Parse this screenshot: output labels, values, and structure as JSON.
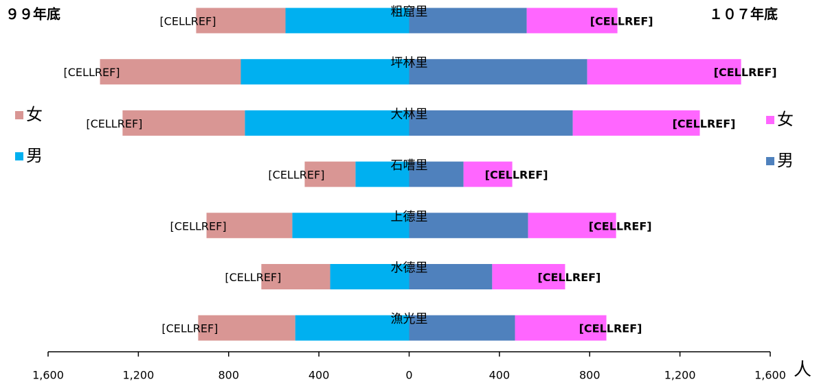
{
  "chart_data": {
    "type": "butterfly",
    "categories": [
      "粗窟里",
      "坪林里",
      "大林里",
      "石嘈里",
      "上德里",
      "水德里",
      "漁光里"
    ],
    "left": {
      "title": "９９年底",
      "series": [
        {
          "name": "男",
          "color": "#00b0f0",
          "values": [
            548,
            746,
            728,
            238,
            518,
            350,
            505
          ]
        },
        {
          "name": "女",
          "color": "#d99694",
          "values": [
            396,
            624,
            542,
            225,
            380,
            305,
            430
          ]
        }
      ],
      "labels": [
        "[CELLREF]",
        "[CELLREF]",
        "[CELLREF]",
        "[CELLREF]",
        "[CELLREF]",
        "[CELLREF]",
        "[CELLREF]"
      ]
    },
    "right": {
      "title": "１０７年底",
      "series": [
        {
          "name": "男",
          "color": "#4f81bd",
          "values": [
            521,
            789,
            725,
            241,
            527,
            368,
            469
          ]
        },
        {
          "name": "女",
          "color": "#ff66ff",
          "values": [
            402,
            682,
            563,
            216,
            390,
            323,
            405
          ]
        }
      ],
      "labels": [
        "[CELLREF]",
        "[CELLREF]",
        "[CELLREF]",
        "[CELLREF]",
        "[CELLREF]",
        "[CELLREF]",
        "[CELLREF]"
      ]
    },
    "xlabel": "人",
    "xlim": [
      -1600,
      1600
    ],
    "xticks": [
      {
        "value": -1600,
        "label": "1,600"
      },
      {
        "value": -1200,
        "label": "1,200"
      },
      {
        "value": -800,
        "label": "800"
      },
      {
        "value": -400,
        "label": "400"
      },
      0,
      400,
      800,
      {
        "value": 1200,
        "label": "1,200"
      },
      {
        "value": 1600,
        "label": "1,600"
      }
    ]
  }
}
